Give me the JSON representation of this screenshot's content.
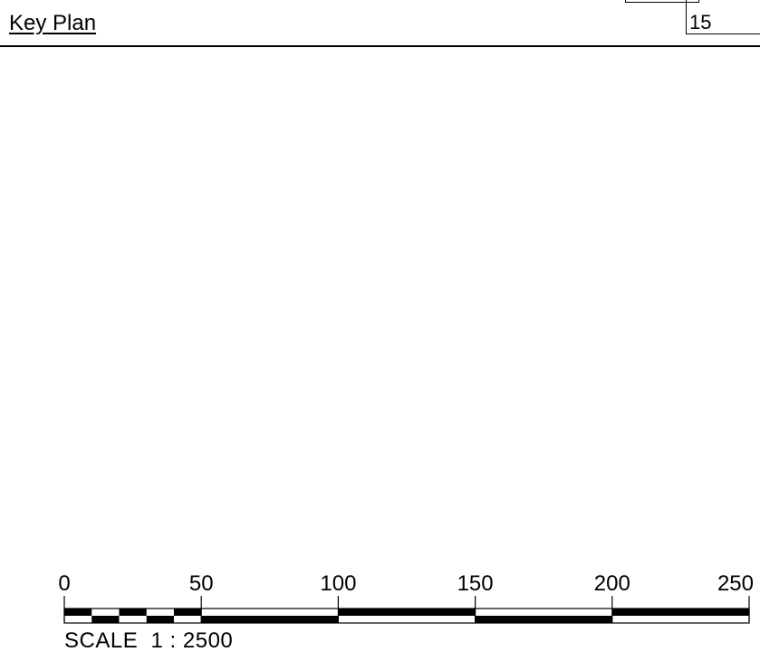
{
  "header": {
    "title": "Key Plan",
    "sheet_number": "15"
  },
  "scalebar": {
    "tick_labels": [
      "0",
      "50",
      "100",
      "150",
      "200",
      "250"
    ],
    "caption": "SCALE  1 : 2500",
    "line_color": "#000000"
  }
}
